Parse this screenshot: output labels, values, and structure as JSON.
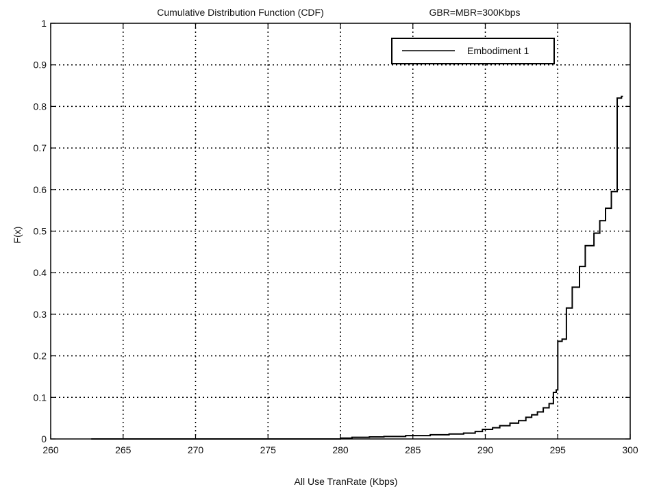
{
  "chart_data": {
    "type": "line",
    "title": "Cumulative Distribution Function (CDF)",
    "subtitle": "GBR=MBR=300Kbps",
    "xlabel": "All Use TranRate (Kbps)",
    "ylabel": "F(x)",
    "xlim": [
      260,
      300
    ],
    "ylim": [
      0,
      1
    ],
    "xticks": [
      "260",
      "265",
      "270",
      "275",
      "280",
      "285",
      "290",
      "295",
      "300"
    ],
    "yticks": [
      "0",
      "0.1",
      "0.2",
      "0.3",
      "0.4",
      "0.5",
      "0.6",
      "0.7",
      "0.8",
      "0.9",
      "1"
    ],
    "grid": true,
    "grid_style": "dotted",
    "legend_position": "top-right",
    "series": [
      {
        "name": "Embodiment 1",
        "color": "#000000",
        "step": true,
        "x": [
          262.8,
          280.0,
          280.8,
          282.0,
          283.0,
          284.5,
          286.2,
          287.5,
          288.5,
          289.3,
          289.8,
          290.5,
          291.0,
          291.7,
          292.3,
          292.8,
          293.2,
          293.6,
          294.0,
          294.4,
          294.7,
          294.9,
          295.0,
          295.3,
          295.6,
          296.0,
          296.5,
          296.9,
          297.5,
          297.9,
          298.3,
          298.7,
          299.1,
          299.4,
          299.5
        ],
        "y": [
          0.0,
          0.002,
          0.004,
          0.005,
          0.006,
          0.008,
          0.01,
          0.012,
          0.014,
          0.018,
          0.023,
          0.027,
          0.032,
          0.038,
          0.044,
          0.052,
          0.058,
          0.065,
          0.075,
          0.085,
          0.112,
          0.118,
          0.235,
          0.24,
          0.315,
          0.365,
          0.415,
          0.465,
          0.495,
          0.525,
          0.555,
          0.595,
          0.82,
          0.824,
          0.824
        ]
      }
    ]
  }
}
